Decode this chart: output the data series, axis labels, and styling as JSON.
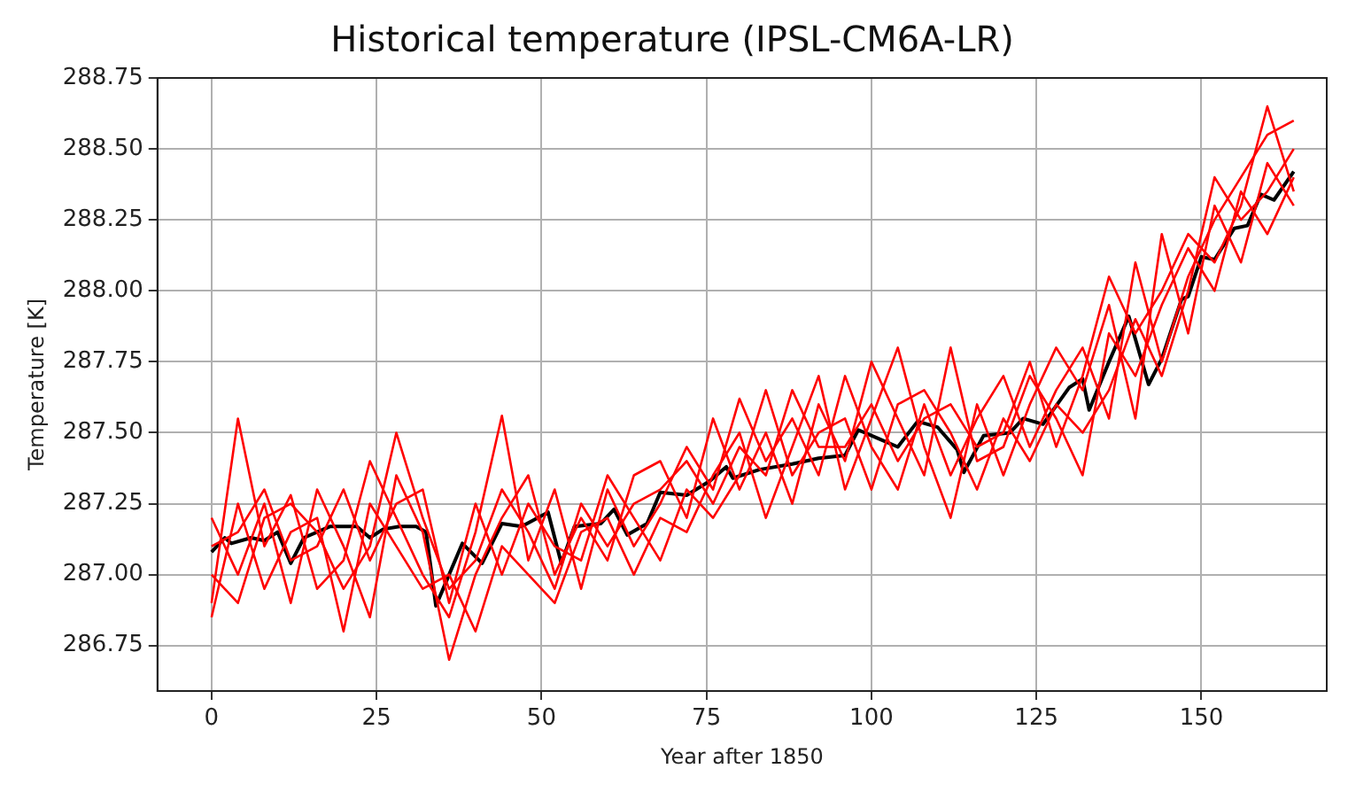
{
  "chart_data": {
    "type": "line",
    "title": "Historical temperature (IPSL-CM6A-LR)",
    "xlabel": "Year after 1850",
    "ylabel": "Temperature [K]",
    "x": [
      0,
      4,
      8,
      12,
      16,
      20,
      24,
      28,
      32,
      36,
      40,
      44,
      48,
      52,
      56,
      60,
      64,
      68,
      72,
      76,
      80,
      84,
      88,
      92,
      96,
      100,
      104,
      108,
      112,
      116,
      120,
      124,
      128,
      132,
      136,
      140,
      144,
      148,
      152,
      156,
      160,
      164
    ],
    "series": [
      {
        "color": "#ff0000",
        "values": [
          286.9,
          287.55,
          287.1,
          287.28,
          286.95,
          287.05,
          287.4,
          287.2,
          287.0,
          286.85,
          287.15,
          287.56,
          287.05,
          287.3,
          286.95,
          287.3,
          287.1,
          287.25,
          287.45,
          287.3,
          287.62,
          287.4,
          287.55,
          287.35,
          287.7,
          287.45,
          287.3,
          287.6,
          287.35,
          287.55,
          287.7,
          287.45,
          287.65,
          287.8,
          287.55,
          288.1,
          287.75,
          288.05,
          288.25,
          288.4,
          288.55,
          288.6
        ]
      },
      {
        "color": "#ff0000",
        "values": [
          287.2,
          287.0,
          287.25,
          286.9,
          287.3,
          287.1,
          286.85,
          287.35,
          287.15,
          286.7,
          287.0,
          287.2,
          287.35,
          287.0,
          287.2,
          287.05,
          287.35,
          287.4,
          287.2,
          287.55,
          287.3,
          287.5,
          287.25,
          287.6,
          287.4,
          287.75,
          287.55,
          287.35,
          287.8,
          287.4,
          287.45,
          287.7,
          287.55,
          287.35,
          287.85,
          287.7,
          287.95,
          288.15,
          288.0,
          288.35,
          288.2,
          288.4
        ]
      },
      {
        "color": "#ff0000",
        "values": [
          286.85,
          287.25,
          286.95,
          287.15,
          287.2,
          286.8,
          287.25,
          287.1,
          286.95,
          287.0,
          286.8,
          287.1,
          287.0,
          286.9,
          287.15,
          287.2,
          287.0,
          287.2,
          287.15,
          287.35,
          287.5,
          287.2,
          287.45,
          287.7,
          287.3,
          287.55,
          287.8,
          287.45,
          287.2,
          287.6,
          287.35,
          287.6,
          287.8,
          287.65,
          287.95,
          287.55,
          288.2,
          287.85,
          288.3,
          288.1,
          288.45,
          288.3
        ]
      },
      {
        "color": "#ff0000",
        "values": [
          287.1,
          287.15,
          287.3,
          287.05,
          287.1,
          287.3,
          287.05,
          287.25,
          287.3,
          286.9,
          287.25,
          287.0,
          287.25,
          287.1,
          287.05,
          287.35,
          287.2,
          287.05,
          287.3,
          287.2,
          287.35,
          287.65,
          287.35,
          287.5,
          287.55,
          287.3,
          287.6,
          287.65,
          287.5,
          287.3,
          287.55,
          287.4,
          287.6,
          287.5,
          287.65,
          287.9,
          287.7,
          288.0,
          288.4,
          288.25,
          288.35,
          288.5
        ]
      },
      {
        "color": "#ff0000",
        "values": [
          287.0,
          286.9,
          287.2,
          287.25,
          287.15,
          286.95,
          287.1,
          287.5,
          287.2,
          286.95,
          287.05,
          287.3,
          287.15,
          286.95,
          287.25,
          287.1,
          287.25,
          287.3,
          287.4,
          287.25,
          287.45,
          287.35,
          287.65,
          287.45,
          287.45,
          287.6,
          287.4,
          287.55,
          287.6,
          287.45,
          287.5,
          287.75,
          287.45,
          287.7,
          288.05,
          287.85,
          288.0,
          288.2,
          288.1,
          288.3,
          288.65,
          288.35
        ]
      },
      {
        "color": "#000000",
        "x": [
          0,
          2,
          3,
          6,
          8,
          10,
          12,
          14,
          18,
          22,
          24,
          26,
          28.5,
          31,
          32.5,
          34,
          38,
          41,
          44,
          47,
          51,
          53,
          55,
          59,
          61,
          63,
          66,
          68,
          72,
          75.5,
          78,
          79,
          83,
          88,
          92,
          96,
          98,
          101,
          104,
          107,
          110,
          113,
          114,
          117,
          121,
          123,
          126,
          130,
          132,
          133,
          136,
          139,
          142,
          144,
          147,
          148,
          150,
          152,
          155,
          157,
          159,
          161,
          164
        ],
        "values": [
          287.08,
          287.13,
          287.11,
          287.13,
          287.12,
          287.15,
          287.04,
          287.13,
          287.17,
          287.17,
          287.13,
          287.16,
          287.17,
          287.17,
          287.15,
          286.89,
          287.11,
          287.04,
          287.18,
          287.17,
          287.22,
          287.04,
          287.17,
          287.18,
          287.23,
          287.14,
          287.18,
          287.29,
          287.28,
          287.33,
          287.38,
          287.34,
          287.37,
          287.39,
          287.41,
          287.42,
          287.51,
          287.48,
          287.45,
          287.54,
          287.52,
          287.44,
          287.36,
          287.49,
          287.5,
          287.55,
          287.53,
          287.66,
          287.69,
          287.58,
          287.75,
          287.91,
          287.67,
          287.76,
          287.97,
          287.98,
          288.12,
          288.11,
          288.22,
          288.23,
          288.34,
          288.32,
          288.42
        ]
      }
    ],
    "xlim": [
      -8.2,
      169
    ],
    "ylim": [
      286.59,
      288.75
    ],
    "xticks": [
      0,
      25,
      50,
      75,
      100,
      125,
      150
    ],
    "yticks": [
      286.75,
      {
        "value": 287,
        "label": "287.00"
      },
      287.25,
      {
        "value": 287.5,
        "label": "287.50"
      },
      287.75,
      {
        "value": 288,
        "label": "288.00"
      },
      288.25,
      {
        "value": 288.5,
        "label": "288.50"
      },
      288.75
    ],
    "grid": true,
    "legend": false,
    "marker": "none",
    "line_style": "solid"
  }
}
